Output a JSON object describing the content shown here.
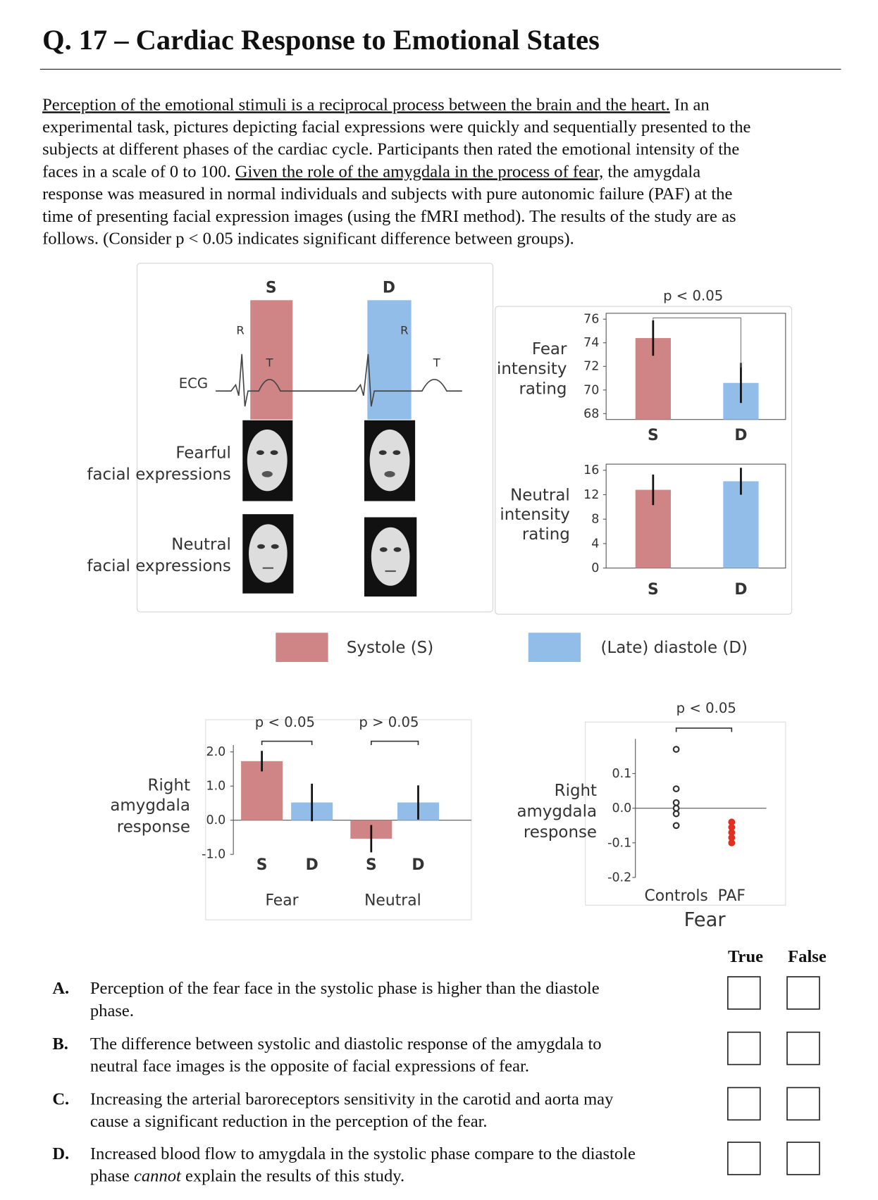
{
  "title": "Q. 17 – Cardiac Response to Emotional States",
  "intro": [
    [
      "Perception of the emotional stimuli is a reciprocal process between the brain and the heart.",
      " In an"
    ],
    [
      "experimental task, pictures depicting facial expressions were quickly and sequentially presented to the"
    ],
    [
      "subjects at different phases of the cardiac cycle. Participants then rated the emotional intensity of the"
    ],
    [
      "faces in a scale of 0 to 100. ",
      "Given the role of the amygdala in the process of fear,",
      " the amygdala"
    ],
    [
      "response was measured in normal individuals and subjects with pure autonomic failure (PAF) at the"
    ],
    [
      "time of presenting facial expression images (using the fMRI method). The results of the study are as"
    ],
    [
      "follows. (Consider p < 0.05 indicates significant difference between groups)."
    ]
  ],
  "diagram": {
    "systole_label": "S",
    "diastole_label": "D",
    "r_labels": [
      "R",
      "R"
    ],
    "t_labels": [
      "T",
      "T"
    ],
    "ecg_label": "ECG",
    "fearful_label": [
      "Fearful",
      "facial expressions"
    ],
    "neutral_label": [
      "Neutral",
      "facial expressions"
    ]
  },
  "legend": [
    {
      "name": "Systole (S)",
      "color": "#cf8585"
    },
    {
      "name": "(Late) diastole (D)",
      "color": "#92bde9"
    }
  ],
  "charts": [
    {
      "type": "bar",
      "ylabel": [
        "Fear",
        "intensity",
        "rating"
      ],
      "categories": [
        "S",
        "D"
      ],
      "values": [
        74.4,
        70.6
      ],
      "errors": [
        1.5,
        1.7
      ],
      "colors": [
        "#cf8585",
        "#92bde9"
      ],
      "ylim": [
        67.5,
        76.5
      ],
      "yticks": [
        68,
        70,
        72,
        74,
        76
      ],
      "annotation": "p < 0.05"
    },
    {
      "type": "bar",
      "ylabel": [
        "Neutral",
        "intensity",
        "rating"
      ],
      "categories": [
        "S",
        "D"
      ],
      "values": [
        12.8,
        14.2
      ],
      "errors": [
        2.5,
        2.2
      ],
      "colors": [
        "#cf8585",
        "#92bde9"
      ],
      "ylim": [
        0,
        17
      ],
      "yticks": [
        0,
        4,
        8,
        12,
        16
      ]
    },
    {
      "type": "grouped_bar",
      "ylabel": [
        "Right",
        "amygdala",
        "response"
      ],
      "groups": [
        "Fear",
        "Neutral"
      ],
      "categories": [
        "S",
        "D",
        "S",
        "D"
      ],
      "values": [
        1.73,
        0.52,
        -0.54,
        0.52
      ],
      "errors": [
        0.3,
        0.55,
        0.4,
        0.5
      ],
      "colors": [
        "#cf8585",
        "#92bde9"
      ],
      "ylim": [
        -1.0,
        2.2
      ],
      "yticks": [
        {
          "value": 2,
          "label": "2.0"
        },
        {
          "value": 1,
          "label": "1.0"
        },
        {
          "value": 0,
          "label": "0.0"
        },
        {
          "value": -1,
          "label": "-1.0"
        }
      ],
      "annotations": [
        "p < 0.05",
        "p > 0.05"
      ]
    },
    {
      "type": "strip",
      "ylabel": [
        "Right",
        "amygdala",
        "response"
      ],
      "categories": [
        "Controls",
        "PAF"
      ],
      "xlabel": "Fear",
      "values": [
        [
          0.17,
          0.056,
          0.016,
          0,
          -0.016,
          -0.05
        ],
        [
          -0.04,
          -0.055,
          -0.07,
          -0.085,
          -0.1
        ]
      ],
      "colors": [
        "#333333",
        "#e03020"
      ],
      "ylim": [
        -0.2,
        0.2
      ],
      "yticks": [
        0.1,
        {
          "value": 0,
          "label": "0.0"
        },
        -0.1,
        -0.2
      ],
      "annotation": "p < 0.05"
    }
  ],
  "options": {
    "true_label": "True",
    "false_label": "False",
    "items": [
      {
        "letter": "A.",
        "lines": [
          [
            "Perception of the fear face in the systolic phase is higher than the diastole"
          ],
          [
            "phase."
          ]
        ]
      },
      {
        "letter": "B.",
        "lines": [
          [
            "The difference between systolic and diastolic response of the amygdala to"
          ],
          [
            "neutral face images is the opposite of facial expressions of fear."
          ]
        ]
      },
      {
        "letter": "C.",
        "lines": [
          [
            "Increasing the arterial baroreceptors sensitivity in the carotid and aorta may"
          ],
          [
            "cause a significant reduction in the perception of the fear."
          ]
        ]
      },
      {
        "letter": "D.",
        "lines": [
          [
            "Increased blood flow to amygdala in the systolic phase compare to the diastole"
          ],
          [
            "phase ",
            "cannot",
            " explain the results of this study."
          ]
        ]
      }
    ]
  }
}
